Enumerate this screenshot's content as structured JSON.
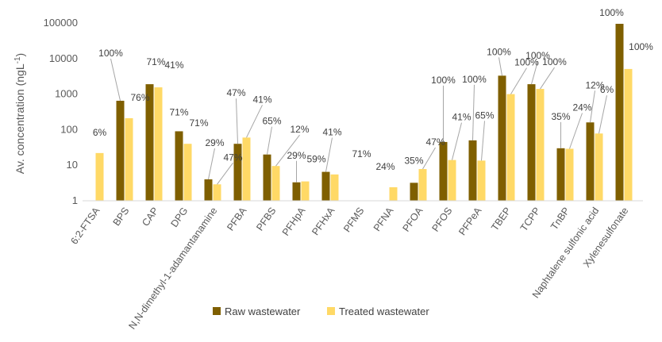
{
  "chart_data": {
    "type": "bar",
    "ylabel_main": "Av. concentration (ngL",
    "ylabel_sup": "-1",
    "ylabel_end": ")",
    "yscale": "log",
    "ylim": [
      1,
      100000
    ],
    "yticks": [
      "1",
      "10",
      "100",
      "1000",
      "10000",
      "100000"
    ],
    "grid": false,
    "legend_position": "bottom",
    "categories": [
      "6:2-FTSA",
      "BPS",
      "CAP",
      "DPG",
      "N,N-dimethyl-1-adamantanamine",
      "PFBA",
      "PFBS",
      "PFHpA",
      "PFHxA",
      "PFMS",
      "PFNA",
      "PFOA",
      "PFOS",
      "PFPeA",
      "TBEP",
      "TCPP",
      "TnBP",
      "Naphtalene sulfonic acid",
      "Xylenesulfonate"
    ],
    "series": [
      {
        "name": "Raw wastewater",
        "color": "#7f5f00",
        "values": [
          null,
          650,
          1900,
          90,
          4,
          40,
          20,
          3.3,
          6.5,
          null,
          null,
          3.2,
          45,
          50,
          3300,
          1900,
          30,
          160,
          95000
        ],
        "labels": [
          "",
          "100%",
          "71%",
          "71%",
          "29%",
          "47%",
          "65%",
          "29%",
          "41%",
          "",
          "",
          "35%",
          "100%",
          "100%",
          "100%",
          "100%",
          "35%",
          "12%",
          "100%"
        ]
      },
      {
        "name": "Treated wastewater",
        "color": "#ffd966",
        "values": [
          22,
          210,
          1550,
          40,
          2.9,
          60,
          9.5,
          3.5,
          5.5,
          null,
          2.4,
          7.8,
          14,
          13.5,
          1000,
          1400,
          29,
          78,
          5100
        ],
        "labels": [
          "6%",
          "76%",
          "41%",
          "71%",
          "47%",
          "41%",
          "12%",
          "59%",
          "71%",
          "",
          "24%",
          "47%",
          "41%",
          "65%",
          "100%",
          "100%",
          "24%",
          "6%",
          "100%"
        ]
      }
    ]
  }
}
